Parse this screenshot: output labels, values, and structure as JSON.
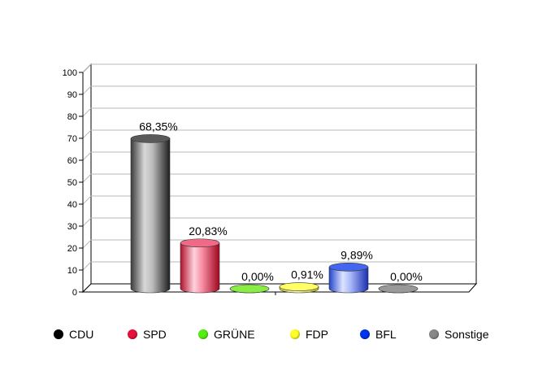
{
  "chart_data": {
    "type": "bar",
    "title": "",
    "xlabel": "",
    "ylabel": "",
    "ylim": [
      0,
      100
    ],
    "yticks": [
      0,
      10,
      20,
      30,
      40,
      50,
      60,
      70,
      80,
      90,
      100
    ],
    "grid": true,
    "legend_position": "bottom",
    "categories": [
      "CDU",
      "SPD",
      "GRÜNE",
      "FDP",
      "BFL",
      "Sonstige"
    ],
    "values": [
      68.35,
      20.83,
      0.0,
      0.91,
      9.89,
      0.0
    ],
    "data_labels": [
      "68,35%",
      "20,83%",
      "0,00%",
      "0,91%",
      "9,89%",
      "0,00%"
    ],
    "colors": [
      "#000000",
      "#e8103a",
      "#66ee22",
      "#ffff33",
      "#1133ee",
      "#888888"
    ]
  },
  "legend": [
    {
      "label": "CDU",
      "color": "#000000"
    },
    {
      "label": "SPD",
      "color": "#e8103a"
    },
    {
      "label": "GRÜNE",
      "color": "#55ee11"
    },
    {
      "label": "FDP",
      "color": "#ffff22"
    },
    {
      "label": "BFL",
      "color": "#0033ee"
    },
    {
      "label": "Sonstige",
      "color": "#888888"
    }
  ]
}
